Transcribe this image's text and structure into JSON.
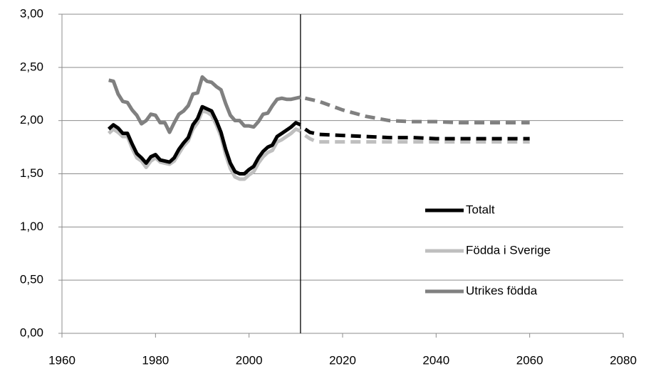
{
  "chart_data": {
    "type": "line",
    "x": [
      1970,
      1971,
      1972,
      1973,
      1974,
      1975,
      1976,
      1977,
      1978,
      1979,
      1980,
      1981,
      1982,
      1983,
      1984,
      1985,
      1986,
      1987,
      1988,
      1989,
      1990,
      1991,
      1992,
      1993,
      1994,
      1995,
      1996,
      1997,
      1998,
      1999,
      2000,
      2001,
      2002,
      2003,
      2004,
      2005,
      2006,
      2007,
      2008,
      2009,
      2010,
      2011,
      2012,
      2013,
      2014,
      2015,
      2020,
      2025,
      2030,
      2035,
      2040,
      2045,
      2050,
      2055,
      2060
    ],
    "series": [
      {
        "name": "Totalt",
        "color": "#000000",
        "values": [
          1.92,
          1.96,
          1.93,
          1.88,
          1.88,
          1.78,
          1.69,
          1.65,
          1.6,
          1.66,
          1.68,
          1.63,
          1.62,
          1.61,
          1.65,
          1.73,
          1.79,
          1.84,
          1.96,
          2.02,
          2.13,
          2.11,
          2.09,
          2.0,
          1.89,
          1.73,
          1.6,
          1.52,
          1.5,
          1.5,
          1.54,
          1.57,
          1.65,
          1.71,
          1.75,
          1.77,
          1.85,
          1.88,
          1.91,
          1.94,
          1.98,
          1.96,
          1.92,
          1.89,
          1.88,
          1.87,
          1.86,
          1.85,
          1.84,
          1.84,
          1.83,
          1.83,
          1.83,
          1.83,
          1.83
        ]
      },
      {
        "name": "Födda i Sverige",
        "color": "#bfbfbf",
        "values": [
          1.88,
          1.92,
          1.89,
          1.85,
          1.85,
          1.74,
          1.65,
          1.62,
          1.56,
          1.62,
          1.65,
          1.61,
          1.6,
          1.59,
          1.62,
          1.69,
          1.76,
          1.81,
          1.92,
          1.98,
          2.09,
          2.08,
          2.05,
          1.96,
          1.85,
          1.68,
          1.55,
          1.47,
          1.45,
          1.45,
          1.49,
          1.52,
          1.6,
          1.66,
          1.7,
          1.72,
          1.8,
          1.82,
          1.85,
          1.88,
          1.92,
          1.9,
          1.86,
          1.83,
          1.81,
          1.8,
          1.8,
          1.8,
          1.8,
          1.8,
          1.8,
          1.8,
          1.8,
          1.8,
          1.8
        ]
      },
      {
        "name": "Utrikes födda",
        "color": "#808080",
        "values": [
          2.38,
          2.37,
          2.25,
          2.18,
          2.17,
          2.1,
          2.05,
          1.97,
          2.0,
          2.06,
          2.05,
          1.98,
          1.98,
          1.89,
          1.98,
          2.06,
          2.09,
          2.14,
          2.25,
          2.26,
          2.41,
          2.37,
          2.36,
          2.32,
          2.29,
          2.16,
          2.05,
          2.0,
          2.0,
          1.95,
          1.95,
          1.94,
          1.99,
          2.06,
          2.07,
          2.14,
          2.2,
          2.21,
          2.2,
          2.2,
          2.21,
          2.22,
          2.21,
          2.2,
          2.19,
          2.18,
          2.1,
          2.04,
          2.0,
          1.99,
          1.99,
          1.98,
          1.98,
          1.98,
          1.98
        ]
      }
    ],
    "vline": 2011,
    "xlim": [
      1960,
      2080
    ],
    "xticks": [
      1960,
      1980,
      2000,
      2020,
      2040,
      2060,
      2080
    ],
    "ylim": [
      0,
      3
    ],
    "yticks": [
      {
        "value": 0,
        "label": "0,00"
      },
      {
        "value": 0.5,
        "label": "0,50"
      },
      {
        "value": 1,
        "label": "1,00"
      },
      {
        "value": 1.5,
        "label": "1,50"
      },
      {
        "value": 2,
        "label": "2,00"
      },
      {
        "value": 2.5,
        "label": "2,50"
      },
      {
        "value": 3,
        "label": "3,00"
      }
    ],
    "grid": true,
    "legend": "right"
  }
}
